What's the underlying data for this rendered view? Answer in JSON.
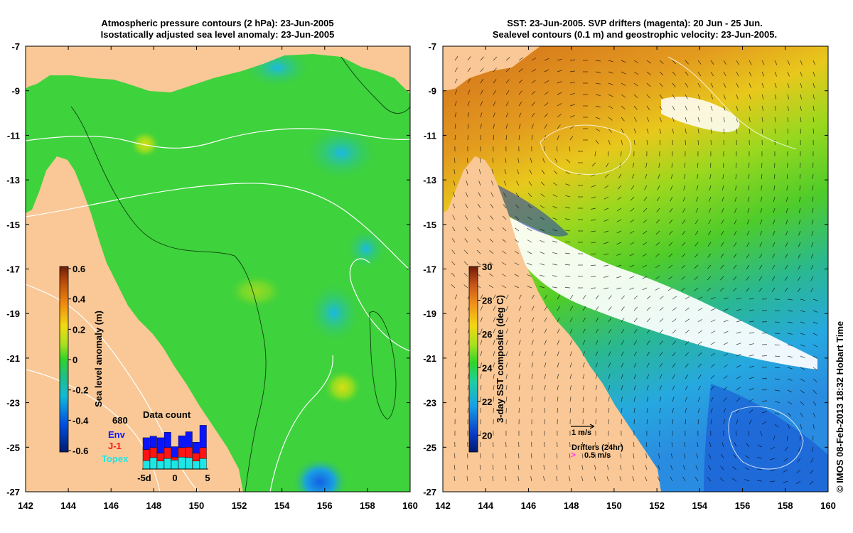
{
  "left_panel": {
    "title_line1": "Atmospheric pressure contours (2 hPa): 23-Jun-2005",
    "title_line2": "Isostatically adjusted sea level anomaly: 23-Jun-2005",
    "colorbar": {
      "label": "Sea level anomaly (m)",
      "ticks": [
        "0.6",
        "0.4",
        "0.2",
        "0",
        "-0.2",
        "-0.4",
        "-0.6"
      ],
      "min": -0.6,
      "max": 0.6
    },
    "data_count": {
      "title": "Data count",
      "max_label": "680",
      "legend": [
        {
          "label": "Env",
          "color": "#0a14ff"
        },
        {
          "label": "J-1",
          "color": "#ff1414"
        },
        {
          "label": "Topex",
          "color": "#1ee6e6"
        }
      ],
      "x_ticks": [
        "-5d",
        "0",
        "5"
      ],
      "stacks": [
        {
          "topex": 0.17,
          "j1": 0.22,
          "env": 0.24
        },
        {
          "topex": 0.23,
          "j1": 0.2,
          "env": 0.23
        },
        {
          "topex": 0.16,
          "j1": 0.16,
          "env": 0.31
        },
        {
          "topex": 0.21,
          "j1": 0.22,
          "env": 0.31
        },
        {
          "topex": 0.18,
          "j1": 0.06,
          "env": 0.21
        },
        {
          "topex": 0.24,
          "j1": 0.19,
          "env": 0.24
        },
        {
          "topex": 0.23,
          "j1": 0.21,
          "env": 0.31
        },
        {
          "topex": 0.16,
          "j1": 0.16,
          "env": 0.22
        },
        {
          "topex": 0.21,
          "j1": 0.22,
          "env": 0.45
        }
      ]
    }
  },
  "right_panel": {
    "title_line1": "SST: 23-Jun-2005. SVP drifters (magenta): 20 Jun - 25 Jun.",
    "title_line2": "Sealevel contours (0.1 m) and geostrophic velocity: 23-Jun-2005.",
    "colorbar": {
      "label": "3-day SST composite (deg C)",
      "ticks": [
        "30",
        "28",
        "26",
        "24",
        "22",
        "20"
      ],
      "min": 19,
      "max": 30
    },
    "velocity_scale_label": "1 m/s",
    "drifters_label": "Drifters (24hr)",
    "drifter_speed_label": "0.5 m/s",
    "drifter_color": "#ff33ff"
  },
  "axes": {
    "lon_ticks": [
      "142",
      "144",
      "146",
      "148",
      "150",
      "152",
      "154",
      "156",
      "158",
      "160"
    ],
    "lat_ticks": [
      "-7",
      "-9",
      "-11",
      "-13",
      "-15",
      "-17",
      "-19",
      "-21",
      "-23",
      "-25",
      "-27"
    ],
    "lon_range": [
      142,
      160
    ],
    "lat_range": [
      -27,
      -7
    ]
  },
  "credit": "© IMOS 08-Feb-2013 18:32 Hobart Time",
  "colors": {
    "land": "#f9c896",
    "sla_background": "#3ed23c",
    "sst_north": "#d9731c",
    "sst_middle": "#7ed61f",
    "sst_south": "#26b4e6"
  }
}
